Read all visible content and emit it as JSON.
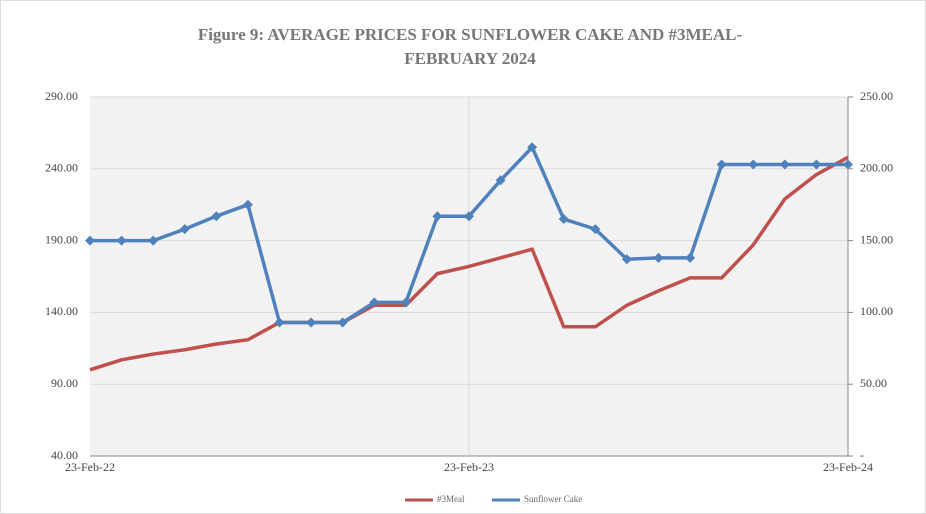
{
  "chart_data": {
    "type": "line",
    "title": "Figure 9: AVERAGE PRICES FOR SUNFLOWER CAKE AND #3MEAL-",
    "subtitle": "FEBRUARY 2024",
    "categories": [
      "23-Feb-22",
      null,
      null,
      null,
      null,
      null,
      null,
      null,
      null,
      null,
      null,
      null,
      "23-Feb-23",
      null,
      null,
      null,
      null,
      null,
      null,
      null,
      null,
      null,
      null,
      null,
      "23-Feb-24"
    ],
    "series": [
      {
        "name": "#3Meal",
        "color": "#c0504d",
        "values": [
          100,
          107,
          111,
          114,
          118,
          121,
          133,
          133,
          133,
          145,
          145,
          167,
          172,
          178,
          184,
          130,
          130,
          145,
          155,
          164,
          164,
          187,
          219,
          236,
          248
        ]
      },
      {
        "name": "Sunflower Cake",
        "color": "#4f81bd",
        "axis": "y2",
        "markers": true,
        "values": [
          150,
          150,
          150,
          158,
          167,
          175,
          93,
          93,
          93,
          107,
          107,
          167,
          167,
          192,
          215,
          165,
          158,
          137,
          138,
          138,
          203,
          203,
          203,
          203,
          203
        ]
      }
    ],
    "ylim": [
      40,
      290
    ],
    "yticks": [
      {
        "value": 40,
        "label": "40.00"
      },
      {
        "value": 90,
        "label": "90.00"
      },
      {
        "value": 140,
        "label": "140.00"
      },
      {
        "value": 190,
        "label": "190.00"
      },
      {
        "value": 240,
        "label": "240.00"
      },
      {
        "value": 290,
        "label": "290.00"
      }
    ],
    "y2lim": [
      0,
      250
    ],
    "y2ticks": [
      {
        "value": 0,
        "label": "-"
      },
      {
        "value": 50,
        "label": "50.00"
      },
      {
        "value": 100,
        "label": "100.00"
      },
      {
        "value": 150,
        "label": "150.00"
      },
      {
        "value": 200,
        "label": "200.00"
      },
      {
        "value": 250,
        "label": "250.00"
      }
    ],
    "grid": true,
    "legend": "bottom"
  }
}
